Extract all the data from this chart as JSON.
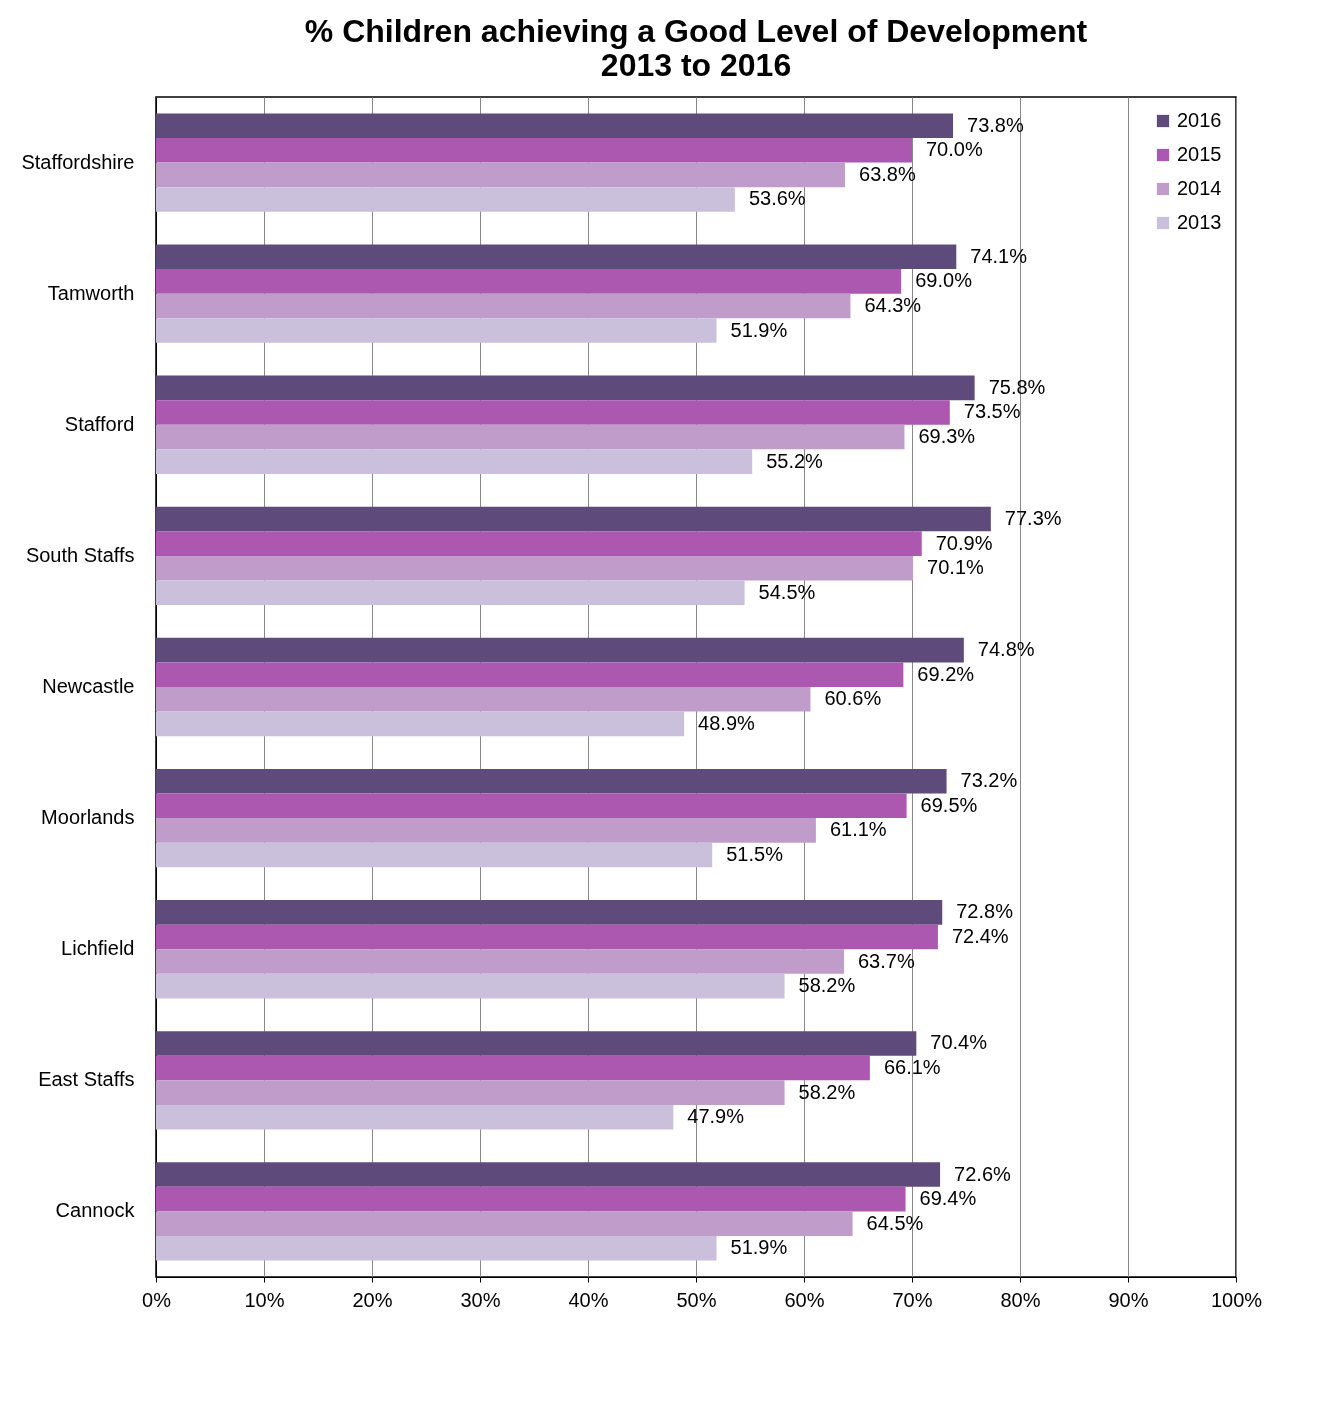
{
  "chart_data": {
    "type": "bar",
    "orientation": "horizontal",
    "title": "% Children achieving a Good Level of Development\n2013 to 2016",
    "categories": [
      "Staffordshire",
      "Tamworth",
      "Stafford",
      "South Staffs",
      "Newcastle",
      "Moorlands",
      "Lichfield",
      "East Staffs",
      "Cannock"
    ],
    "series": [
      {
        "name": "2016",
        "color": "#5f4a7c",
        "values": [
          73.8,
          74.1,
          75.8,
          77.3,
          74.8,
          73.2,
          72.8,
          70.4,
          72.6
        ],
        "value_labels": [
          "73.8%",
          "74.1%",
          "75.8%",
          "77.3%",
          "74.8%",
          "73.2%",
          "72.8%",
          "70.4%",
          "72.6%"
        ]
      },
      {
        "name": "2015",
        "color": "#ad58b0",
        "values": [
          70.0,
          69.0,
          73.5,
          70.9,
          69.2,
          69.5,
          72.4,
          66.1,
          69.4
        ],
        "value_labels": [
          "70.0%",
          "69.0%",
          "73.5%",
          "70.9%",
          "69.2%",
          "69.5%",
          "72.4%",
          "66.1%",
          "69.4%"
        ]
      },
      {
        "name": "2014",
        "color": "#c09ccb",
        "values": [
          63.8,
          64.3,
          69.3,
          70.1,
          60.6,
          61.1,
          63.7,
          58.2,
          64.5
        ],
        "value_labels": [
          "63.8%",
          "64.3%",
          "69.3%",
          "70.1%",
          "60.6%",
          "61.1%",
          "63.7%",
          "58.2%",
          "64.5%"
        ]
      },
      {
        "name": "2013",
        "color": "#cbc0db",
        "values": [
          53.6,
          51.9,
          55.2,
          54.5,
          48.9,
          51.5,
          58.2,
          47.9,
          51.9
        ],
        "value_labels": [
          "53.6%",
          "51.9%",
          "55.2%",
          "54.5%",
          "48.9%",
          "51.5%",
          "58.2%",
          "47.9%",
          "51.9%"
        ]
      }
    ],
    "xlim": [
      0,
      100
    ],
    "xticks": [
      {
        "value": 0,
        "label": "0%"
      },
      {
        "value": 10,
        "label": "10%"
      },
      {
        "value": 20,
        "label": "20%"
      },
      {
        "value": 30,
        "label": "30%"
      },
      {
        "value": 40,
        "label": "40%"
      },
      {
        "value": 50,
        "label": "50%"
      },
      {
        "value": 60,
        "label": "60%"
      },
      {
        "value": 70,
        "label": "70%"
      },
      {
        "value": 80,
        "label": "80%"
      },
      {
        "value": 90,
        "label": "90%"
      },
      {
        "value": 100,
        "label": "100%"
      }
    ],
    "grid": "x",
    "legend": "top right"
  }
}
